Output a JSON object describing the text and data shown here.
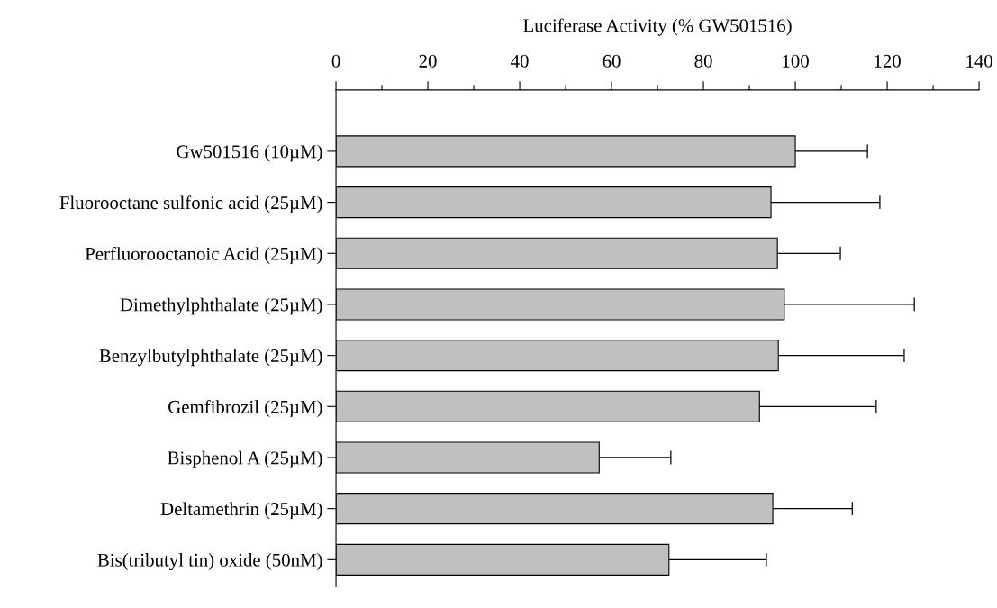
{
  "chart_data": {
    "type": "bar",
    "orientation": "horizontal",
    "xlabel": "Luciferase Activity (% GW501516)",
    "categories": [
      "Gw501516 (10µM)",
      "Fluorooctane sulfonic acid (25µM)",
      "Perfluorooctanoic Acid (25µM)",
      "Dimethylphthalate (25µM)",
      "Benzylbutylphthalate (25µM)",
      "Gemfibrozil (25µM)",
      "Bisphenol A (25µM)",
      "Deltamethrin (25µM)",
      "Bis(tributyl tin) oxide (50nM)"
    ],
    "values": [
      100,
      94.7,
      96.1,
      97.6,
      96.3,
      92.2,
      57.3,
      95.1,
      72.5
    ],
    "errors": [
      [
        100,
        115.7
      ],
      [
        94.7,
        118.4
      ],
      [
        96.1,
        109.8
      ],
      [
        97.6,
        125.9
      ],
      [
        96.3,
        123.7
      ],
      [
        92.2,
        117.6
      ],
      [
        57.3,
        72.9
      ],
      [
        95.1,
        112.4
      ],
      [
        72.5,
        93.7
      ]
    ],
    "color": "#c0c0c0",
    "xlim": [
      0,
      140
    ],
    "xticks": [
      0,
      {
        "value": 10,
        "label": null
      },
      20,
      {
        "value": 30,
        "label": null
      },
      40,
      {
        "value": 50,
        "label": null
      },
      60,
      {
        "value": 70,
        "label": null
      },
      80,
      {
        "value": 90,
        "label": null
      },
      100,
      {
        "value": 110,
        "label": null
      },
      120,
      {
        "value": 130,
        "label": null
      },
      140
    ],
    "grid": false,
    "legend": false
  }
}
